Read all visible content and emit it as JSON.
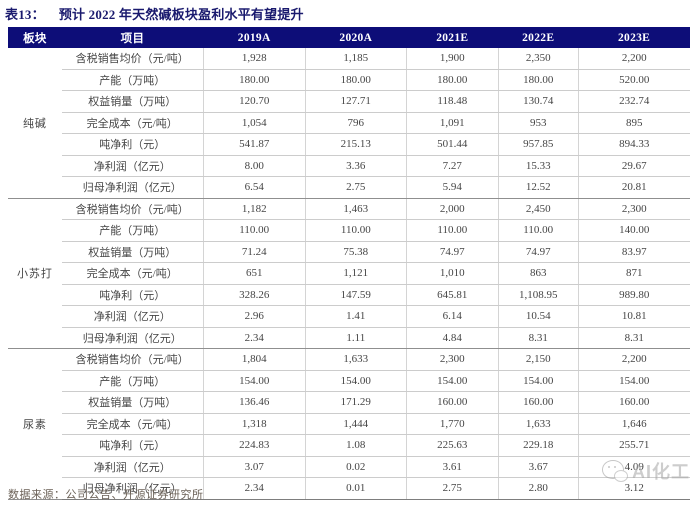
{
  "title": {
    "tag": "表13：",
    "text": "预计 2022 年天然碱板块盈利水平有望提升"
  },
  "table": {
    "columns": [
      "板块",
      "项目",
      "2019A",
      "2020A",
      "2021E",
      "2022E",
      "2023E"
    ],
    "sections": [
      {
        "name": "纯碱",
        "rows": [
          {
            "label": "含税销售均价（元/吨）",
            "values": [
              "1,928",
              "1,185",
              "1,900",
              "2,350",
              "2,200"
            ]
          },
          {
            "label": "产能（万吨）",
            "values": [
              "180.00",
              "180.00",
              "180.00",
              "180.00",
              "520.00"
            ]
          },
          {
            "label": "权益销量（万吨）",
            "values": [
              "120.70",
              "127.71",
              "118.48",
              "130.74",
              "232.74"
            ]
          },
          {
            "label": "完全成本（元/吨）",
            "values": [
              "1,054",
              "796",
              "1,091",
              "953",
              "895"
            ]
          },
          {
            "label": "吨净利（元）",
            "values": [
              "541.87",
              "215.13",
              "501.44",
              "957.85",
              "894.33"
            ]
          },
          {
            "label": "净利润（亿元）",
            "values": [
              "8.00",
              "3.36",
              "7.27",
              "15.33",
              "29.67"
            ]
          },
          {
            "label": "归母净利润（亿元）",
            "values": [
              "6.54",
              "2.75",
              "5.94",
              "12.52",
              "20.81"
            ]
          }
        ]
      },
      {
        "name": "小苏打",
        "rows": [
          {
            "label": "含税销售均价（元/吨）",
            "values": [
              "1,182",
              "1,463",
              "2,000",
              "2,450",
              "2,300"
            ]
          },
          {
            "label": "产能（万吨）",
            "values": [
              "110.00",
              "110.00",
              "110.00",
              "110.00",
              "140.00"
            ]
          },
          {
            "label": "权益销量（万吨）",
            "values": [
              "71.24",
              "75.38",
              "74.97",
              "74.97",
              "83.97"
            ]
          },
          {
            "label": "完全成本（元/吨）",
            "values": [
              "651",
              "1,121",
              "1,010",
              "863",
              "871"
            ]
          },
          {
            "label": "吨净利（元）",
            "values": [
              "328.26",
              "147.59",
              "645.81",
              "1,108.95",
              "989.80"
            ]
          },
          {
            "label": "净利润（亿元）",
            "values": [
              "2.96",
              "1.41",
              "6.14",
              "10.54",
              "10.81"
            ]
          },
          {
            "label": "归母净利润（亿元）",
            "values": [
              "2.34",
              "1.11",
              "4.84",
              "8.31",
              "8.31"
            ]
          }
        ]
      },
      {
        "name": "尿素",
        "rows": [
          {
            "label": "含税销售均价（元/吨）",
            "values": [
              "1,804",
              "1,633",
              "2,300",
              "2,150",
              "2,200"
            ]
          },
          {
            "label": "产能（万吨）",
            "values": [
              "154.00",
              "154.00",
              "154.00",
              "154.00",
              "154.00"
            ]
          },
          {
            "label": "权益销量（万吨）",
            "values": [
              "136.46",
              "171.29",
              "160.00",
              "160.00",
              "160.00"
            ]
          },
          {
            "label": "完全成本（元/吨）",
            "values": [
              "1,318",
              "1,444",
              "1,770",
              "1,633",
              "1,646"
            ]
          },
          {
            "label": "吨净利（元）",
            "values": [
              "224.83",
              "1.08",
              "225.63",
              "229.18",
              "255.71"
            ]
          },
          {
            "label": "净利润（亿元）",
            "values": [
              "3.07",
              "0.02",
              "3.61",
              "3.67",
              "4.09"
            ]
          },
          {
            "label": "归母净利润（亿元）",
            "values": [
              "2.34",
              "0.01",
              "2.75",
              "2.80",
              "3.12"
            ]
          }
        ]
      }
    ]
  },
  "footer": {
    "source_label": "数据来源：",
    "source_text": "公司公告、开源证券研究所"
  },
  "watermark": {
    "icon": "wechat-smiley-icon",
    "text": "AI化工"
  },
  "colors": {
    "header_bg": "#0d0d78",
    "header_text": "#ffffff",
    "title_text": "#1a1a6e",
    "body_text": "#454545",
    "row_divider": "#cccccc",
    "section_divider": "#8f8f8f",
    "footer_text": "#6b6157",
    "watermark_text": "#a6a6a6"
  }
}
